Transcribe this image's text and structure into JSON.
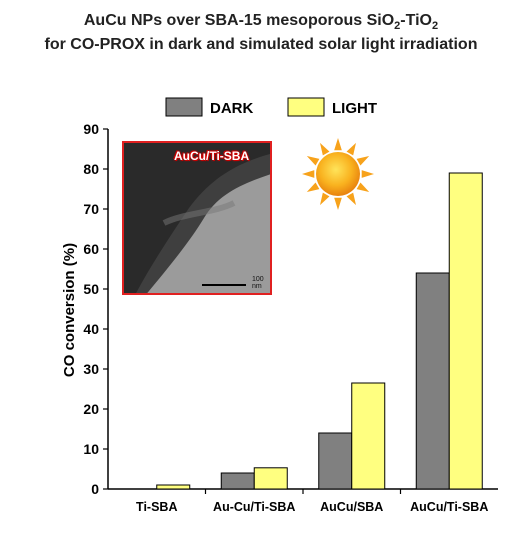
{
  "title_line1": "AuCu NPs over SBA-15 mesoporous SiO",
  "title_sub1": "2",
  "title_mid": "-TiO",
  "title_sub2": "2",
  "title_line2": "for CO-PROX  in dark and simulated solar light irradiation",
  "inset_label": "AuCu/Ti-SBA",
  "inset_scale": "100 nm",
  "colors": {
    "dark": "#808080",
    "light": "#ffff80",
    "axis": "#000000",
    "inset_border": "#e02020",
    "sun": "#f7a21b"
  },
  "chart_data": {
    "type": "bar",
    "categories": [
      "Ti-SBA",
      "Au-Cu/Ti-SBA",
      "AuCu/SBA",
      "AuCu/Ti-SBA"
    ],
    "series": [
      {
        "name": "DARK",
        "values": [
          0,
          4,
          14,
          54
        ]
      },
      {
        "name": "LIGHT",
        "values": [
          1,
          5.3,
          26.5,
          79
        ]
      }
    ],
    "ylabel": "CO conversion (%)",
    "xlabel": "",
    "ylim": [
      0,
      90
    ],
    "yticks": [
      0,
      10,
      20,
      30,
      40,
      50,
      60,
      70,
      80,
      90
    ],
    "legend_position": "top",
    "grid": false
  }
}
